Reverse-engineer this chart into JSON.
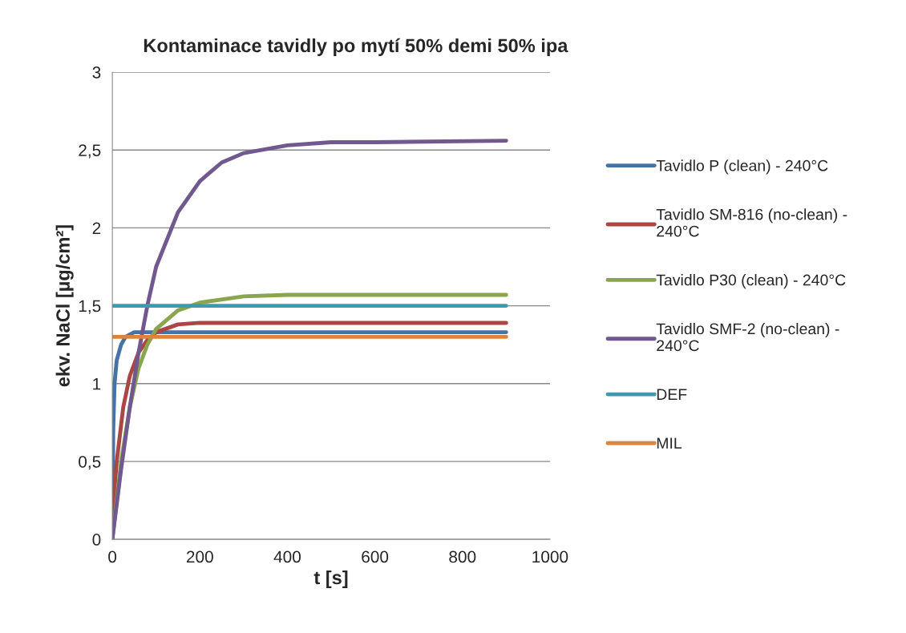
{
  "chart_data": {
    "type": "line",
    "title": "Kontaminace tavidly po mytí 50% demi 50% ipa",
    "xlabel": "t [s]",
    "ylabel": "ekv. NaCl [µg/cm²]",
    "xlim": [
      0,
      1000
    ],
    "xticks": [
      0,
      200,
      400,
      600,
      800,
      1000
    ],
    "ylim": [
      0,
      3
    ],
    "yticks": [
      0,
      {
        "value": 0.5,
        "label": "0,5"
      },
      1,
      {
        "value": 1.5,
        "label": "1,5"
      },
      2,
      {
        "value": 2.5,
        "label": "2,5"
      },
      3
    ],
    "grid": "y",
    "legend": "right",
    "marker": "none",
    "line_style": "solid",
    "series": [
      {
        "name": "Tavidlo P (clean) - 240°C",
        "color": "#4572a7",
        "x": [
          0,
          2,
          5,
          10,
          20,
          30,
          50,
          900
        ],
        "values": [
          0,
          0.7,
          1.0,
          1.15,
          1.25,
          1.3,
          1.33,
          1.33
        ]
      },
      {
        "name": "Tavidlo SM-816 (no-clean) - 240°C",
        "color": "#aa4643",
        "x": [
          0,
          10,
          25,
          40,
          60,
          80,
          100,
          150,
          200,
          900
        ],
        "values": [
          0.15,
          0.5,
          0.85,
          1.05,
          1.2,
          1.28,
          1.33,
          1.38,
          1.39,
          1.39
        ]
      },
      {
        "name": "Tavidlo P30 (clean) - 240°C",
        "color": "#89a54e",
        "x": [
          0,
          20,
          40,
          60,
          80,
          100,
          150,
          200,
          300,
          400,
          900
        ],
        "values": [
          0,
          0.5,
          0.85,
          1.1,
          1.25,
          1.35,
          1.47,
          1.52,
          1.56,
          1.57,
          1.57
        ]
      },
      {
        "name": "Tavidlo SMF-2 (no-clean) - 240°C",
        "color": "#71588f",
        "x": [
          0,
          20,
          40,
          60,
          80,
          100,
          150,
          200,
          250,
          300,
          400,
          500,
          600,
          900
        ],
        "values": [
          0,
          0.45,
          0.85,
          1.2,
          1.5,
          1.75,
          2.1,
          2.3,
          2.42,
          2.48,
          2.53,
          2.55,
          2.55,
          2.56
        ]
      },
      {
        "name": "DEF",
        "color": "#4198af",
        "x": [
          0,
          900
        ],
        "values": [
          1.5,
          1.5
        ]
      },
      {
        "name": "MIL",
        "color": "#db843d",
        "x": [
          0,
          900
        ],
        "values": [
          1.3,
          1.3
        ]
      }
    ]
  }
}
